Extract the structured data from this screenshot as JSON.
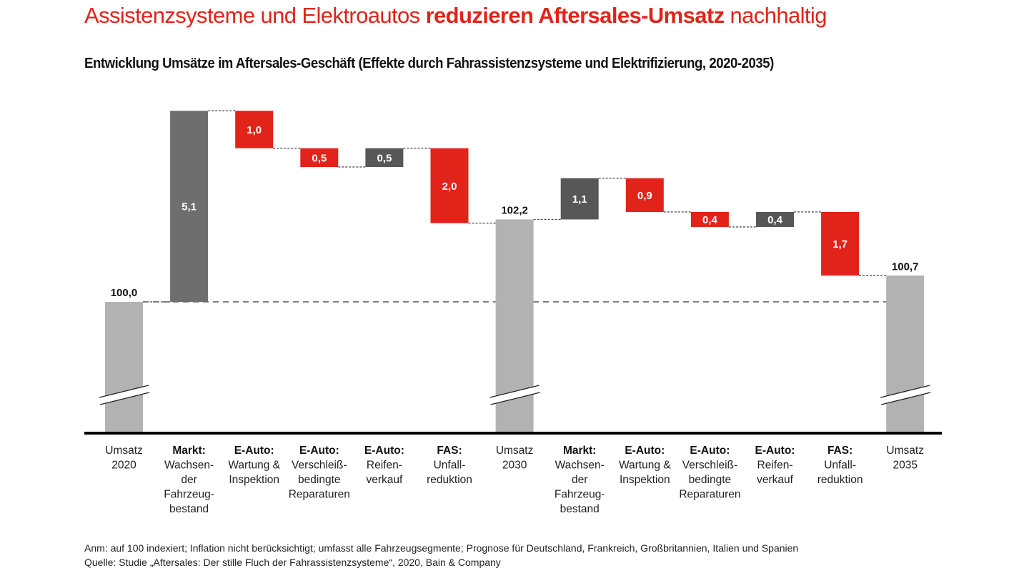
{
  "header": {
    "title_prefix": "Assistenzsysteme und Elektroautos ",
    "title_bold": "reduzieren Aftersales-Umsatz",
    "title_suffix": " nachhaltig",
    "subtitle": "Entwicklung Umsätze im Aftersales-Geschäft (Effekte durch Fahrassistenzsysteme und Elektrifizierung, 2020-2035)"
  },
  "footer": {
    "note": "Anm: auf 100 indexiert; Inflation nicht berücksichtigt; umfasst alle Fahrzeugsegmente; Prognose für Deutschland, Frankreich, Großbritannien, Italien und Spanien",
    "source": "Quelle: Studie „Aftersales: Der stille Fluch der Fahrassistenzsysteme“, 2020, Bain & Company"
  },
  "colors": {
    "decrease": "#e2231a",
    "increase_market": "#6e6e6e",
    "increase": "#575757",
    "total": "#b2b2b2",
    "axis": "#000000",
    "title": "#e2231a"
  },
  "chart_data": {
    "type": "bar",
    "subtype": "waterfall",
    "title": "Entwicklung Umsätze im Aftersales-Geschäft (Effekte durch Fahrassistenzsysteme und Elektrifizierung, 2020-2035)",
    "xlabel": "",
    "ylabel": "",
    "baseline": 100.0,
    "axis_break": true,
    "grid": false,
    "ylim": [
      95.4,
      105.1
    ],
    "bars": [
      {
        "kind": "total",
        "value": 100.0,
        "label": "100,0",
        "category_bold": "",
        "category": "Umsatz\n2020"
      },
      {
        "kind": "increase_market",
        "value": 5.1,
        "label": "5,1",
        "category_bold": "Markt:",
        "category": "Wachsen-\nder\nFahrzeug-\nbestand"
      },
      {
        "kind": "decrease",
        "value": -1.0,
        "label": "1,0",
        "category_bold": "E-Auto:",
        "category": "Wartung &\nInspektion"
      },
      {
        "kind": "decrease",
        "value": -0.5,
        "label": "0,5",
        "category_bold": "E-Auto:",
        "category": "Verschleiß-\nbedingte\nReparaturen"
      },
      {
        "kind": "increase",
        "value": 0.5,
        "label": "0,5",
        "category_bold": "E-Auto:",
        "category": "Reifen-\nverkauf"
      },
      {
        "kind": "decrease",
        "value": -2.0,
        "label": "2,0",
        "category_bold": "FAS:",
        "category": "Unfall-\nreduktion"
      },
      {
        "kind": "total",
        "value": 102.2,
        "label": "102,2",
        "category_bold": "",
        "category": "Umsatz\n2030"
      },
      {
        "kind": "increase",
        "value": 1.1,
        "label": "1,1",
        "category_bold": "Markt:",
        "category": "Wachsen-\nder\nFahrzeug-\nbestand"
      },
      {
        "kind": "decrease",
        "value": -0.9,
        "label": "0,9",
        "category_bold": "E-Auto:",
        "category": "Wartung &\nInspektion"
      },
      {
        "kind": "decrease",
        "value": -0.4,
        "label": "0,4",
        "category_bold": "E-Auto:",
        "category": "Verschleiß-\nbedingte\nReparaturen"
      },
      {
        "kind": "increase",
        "value": 0.4,
        "label": "0,4",
        "category_bold": "E-Auto:",
        "category": "Reifen-\nverkauf"
      },
      {
        "kind": "decrease",
        "value": -1.7,
        "label": "1,7",
        "category_bold": "FAS:",
        "category": "Unfall-\nreduktion"
      },
      {
        "kind": "total",
        "value": 100.7,
        "label": "100,7",
        "category_bold": "",
        "category": "Umsatz\n2035"
      }
    ]
  }
}
